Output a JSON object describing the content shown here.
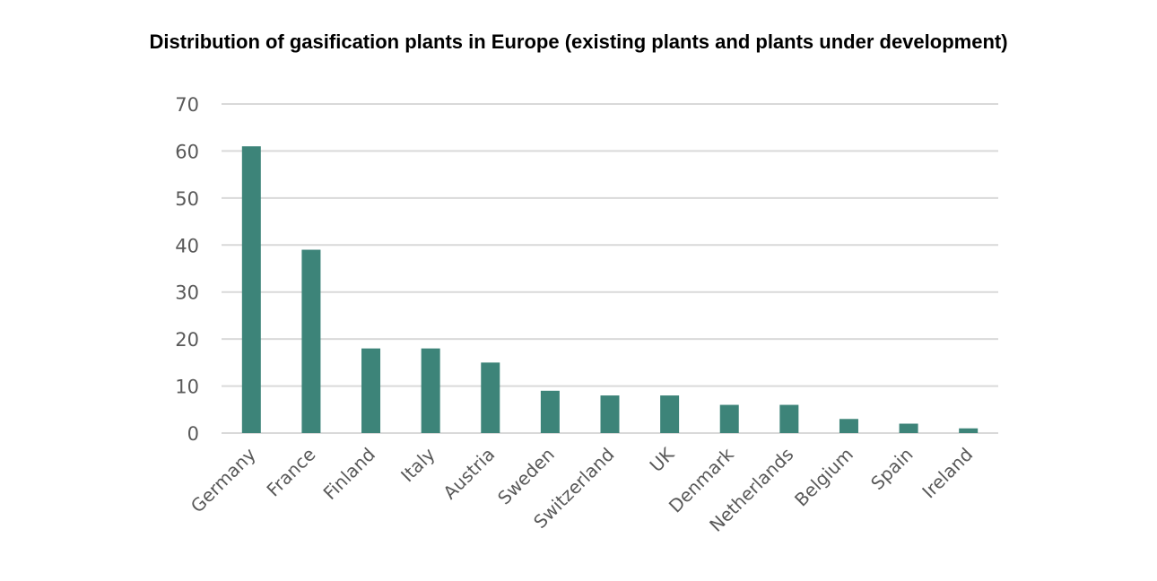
{
  "chart_data": {
    "type": "bar",
    "title": "Distribution of gasification plants in Europe (existing plants and plants under development)",
    "categories": [
      "Germany",
      "France",
      "Finland",
      "Italy",
      "Austria",
      "Sweden",
      "Switzerland",
      "UK",
      "Denmark",
      "Netherlands",
      "Belgium",
      "Spain",
      "Ireland"
    ],
    "values": [
      61,
      39,
      18,
      18,
      15,
      9,
      8,
      8,
      6,
      6,
      3,
      2,
      1
    ],
    "xlabel": "",
    "ylabel": "",
    "ylim": [
      0,
      70
    ],
    "yticks": [
      0,
      10,
      20,
      30,
      40,
      50,
      60,
      70
    ],
    "grid": true,
    "legend": "none",
    "bar_color": "#3d8479",
    "grid_color": "#d9d9d9"
  }
}
